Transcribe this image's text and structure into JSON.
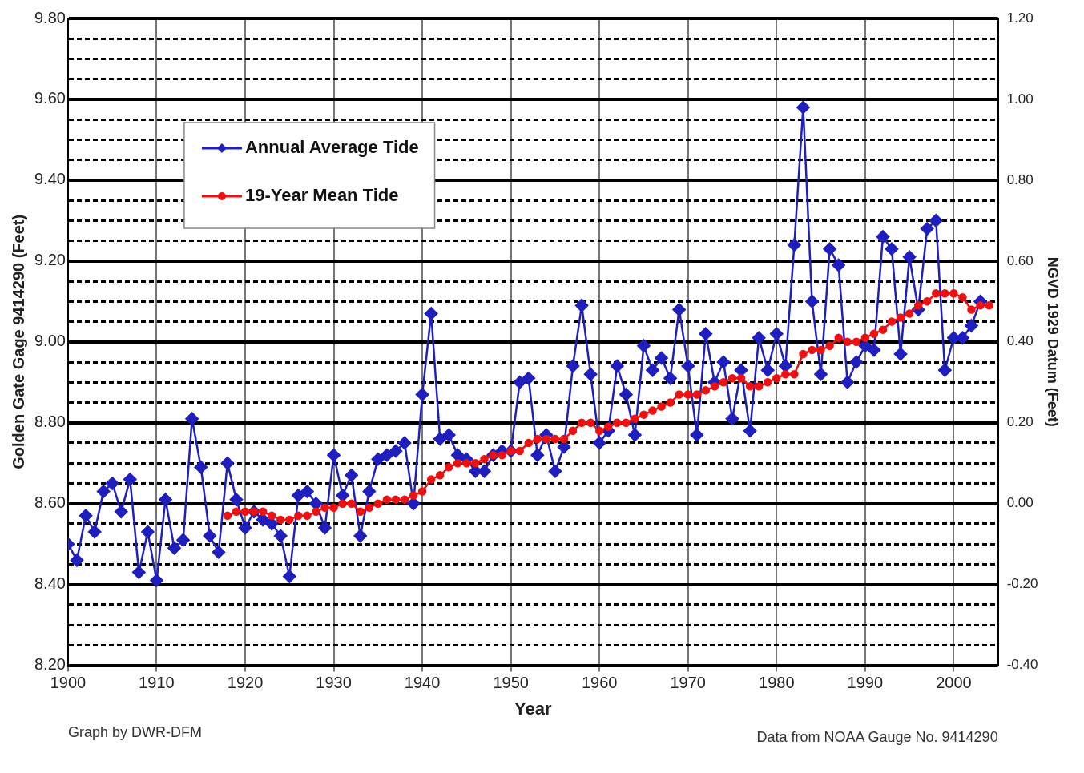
{
  "chart_data": {
    "type": "line",
    "xlabel": "Year",
    "ylabel": "Golden Gate Gage 9414290 (Feet)",
    "y2label": "NGVD 1929 Datum (Feet)",
    "annotations": [
      "Graph by DWR-DFM",
      "Data from NOAA Gauge No. 9414290"
    ],
    "xlim": [
      1900,
      2005
    ],
    "xticks": [
      1900,
      1910,
      1920,
      1930,
      1940,
      1950,
      1960,
      1970,
      1980,
      1990,
      2000
    ],
    "ylim": [
      8.2,
      9.8
    ],
    "yticks": [
      {
        "value": 8.2,
        "label": "8.20"
      },
      {
        "value": 8.25,
        "label": null
      },
      {
        "value": 8.3,
        "label": null
      },
      {
        "value": 8.35,
        "label": null
      },
      {
        "value": 8.4,
        "label": "8.40"
      },
      {
        "value": 8.45,
        "label": null
      },
      {
        "value": 8.5,
        "label": null
      },
      {
        "value": 8.55,
        "label": null
      },
      {
        "value": 8.6,
        "label": "8.60"
      },
      {
        "value": 8.65,
        "label": null
      },
      {
        "value": 8.7,
        "label": null
      },
      {
        "value": 8.75,
        "label": null
      },
      {
        "value": 8.8,
        "label": "8.80"
      },
      {
        "value": 8.85,
        "label": null
      },
      {
        "value": 8.9,
        "label": null
      },
      {
        "value": 8.95,
        "label": null
      },
      {
        "value": 9.0,
        "label": "9.00"
      },
      {
        "value": 9.05,
        "label": null
      },
      {
        "value": 9.1,
        "label": null
      },
      {
        "value": 9.15,
        "label": null
      },
      {
        "value": 9.2,
        "label": "9.20"
      },
      {
        "value": 9.25,
        "label": null
      },
      {
        "value": 9.3,
        "label": null
      },
      {
        "value": 9.35,
        "label": null
      },
      {
        "value": 9.4,
        "label": "9.40"
      },
      {
        "value": 9.45,
        "label": null
      },
      {
        "value": 9.5,
        "label": null
      },
      {
        "value": 9.55,
        "label": null
      },
      {
        "value": 9.6,
        "label": "9.60"
      },
      {
        "value": 9.65,
        "label": null
      },
      {
        "value": 9.7,
        "label": null
      },
      {
        "value": 9.75,
        "label": null
      },
      {
        "value": 9.8,
        "label": "9.80"
      }
    ],
    "y2lim": [
      -0.4,
      1.2
    ],
    "y2ticks": [
      {
        "value": -0.4,
        "label": "-0.40"
      },
      {
        "value": -0.2,
        "label": "-0.20"
      },
      {
        "value": 0,
        "label": "0.00"
      },
      {
        "value": 0.2,
        "label": "0.20"
      },
      {
        "value": 0.4,
        "label": "0.40"
      },
      {
        "value": 0.6,
        "label": "0.60"
      },
      {
        "value": 0.8,
        "label": "0.80"
      },
      {
        "value": 1.0,
        "label": "1.00"
      },
      {
        "value": 1.2,
        "label": "1.20"
      }
    ],
    "grid": true,
    "legend": "top left",
    "line_style": "solid",
    "series": [
      {
        "name": "Annual Average Tide",
        "color": "#1f1fbf",
        "marker": "diamond",
        "x": [
          1900,
          1901,
          1902,
          1903,
          1904,
          1905,
          1906,
          1907,
          1908,
          1909,
          1910,
          1911,
          1912,
          1913,
          1914,
          1915,
          1916,
          1917,
          1918,
          1919,
          1920,
          1921,
          1922,
          1923,
          1924,
          1925,
          1926,
          1927,
          1928,
          1929,
          1930,
          1931,
          1932,
          1933,
          1934,
          1935,
          1936,
          1937,
          1938,
          1939,
          1940,
          1941,
          1942,
          1943,
          1944,
          1945,
          1946,
          1947,
          1948,
          1949,
          1950,
          1951,
          1952,
          1953,
          1954,
          1955,
          1956,
          1957,
          1958,
          1959,
          1960,
          1961,
          1962,
          1963,
          1964,
          1965,
          1966,
          1967,
          1968,
          1969,
          1970,
          1971,
          1972,
          1973,
          1974,
          1975,
          1976,
          1977,
          1978,
          1979,
          1980,
          1981,
          1982,
          1983,
          1984,
          1985,
          1986,
          1987,
          1988,
          1989,
          1990,
          1991,
          1992,
          1993,
          1994,
          1995,
          1996,
          1997,
          1998,
          1999,
          2000,
          2001,
          2002,
          2003
        ],
        "values": [
          8.5,
          8.46,
          8.57,
          8.53,
          8.63,
          8.65,
          8.58,
          8.66,
          8.43,
          8.53,
          8.41,
          8.61,
          8.49,
          8.51,
          8.81,
          8.69,
          8.52,
          8.48,
          8.7,
          8.61,
          8.54,
          8.58,
          8.56,
          8.55,
          8.52,
          8.42,
          8.62,
          8.63,
          8.6,
          8.54,
          8.72,
          8.62,
          8.67,
          8.52,
          8.63,
          8.71,
          8.72,
          8.73,
          8.75,
          8.6,
          8.87,
          9.07,
          8.76,
          8.77,
          8.72,
          8.71,
          8.68,
          8.68,
          8.72,
          8.73,
          8.73,
          8.9,
          8.91,
          8.72,
          8.77,
          8.68,
          8.74,
          8.94,
          9.09,
          8.92,
          8.75,
          8.78,
          8.94,
          8.87,
          8.77,
          8.99,
          8.93,
          8.96,
          8.91,
          9.08,
          8.94,
          8.77,
          9.02,
          8.9,
          8.95,
          8.81,
          8.93,
          8.78,
          9.01,
          8.93,
          9.02,
          8.94,
          9.24,
          9.58,
          9.1,
          8.92,
          9.23,
          9.19,
          8.9,
          8.95,
          8.99,
          8.98,
          9.26,
          9.23,
          8.97,
          9.21,
          9.08,
          9.28,
          9.3,
          8.93,
          9.01,
          9.01,
          9.04,
          9.1
        ]
      },
      {
        "name": "19-Year Mean Tide",
        "color": "#ee1111",
        "marker": "circle",
        "x": [
          1918,
          1919,
          1920,
          1921,
          1922,
          1923,
          1924,
          1925,
          1926,
          1927,
          1928,
          1929,
          1930,
          1931,
          1932,
          1933,
          1934,
          1935,
          1936,
          1937,
          1938,
          1939,
          1940,
          1941,
          1942,
          1943,
          1944,
          1945,
          1946,
          1947,
          1948,
          1949,
          1950,
          1951,
          1952,
          1953,
          1954,
          1955,
          1956,
          1957,
          1958,
          1959,
          1960,
          1961,
          1962,
          1963,
          1964,
          1965,
          1966,
          1967,
          1968,
          1969,
          1970,
          1971,
          1972,
          1973,
          1974,
          1975,
          1976,
          1977,
          1978,
          1979,
          1980,
          1981,
          1982,
          1983,
          1984,
          1985,
          1986,
          1987,
          1988,
          1989,
          1990,
          1991,
          1992,
          1993,
          1994,
          1995,
          1996,
          1997,
          1998,
          1999,
          2000,
          2001,
          2002,
          2003,
          2004
        ],
        "values": [
          8.57,
          8.58,
          8.58,
          8.58,
          8.58,
          8.57,
          8.56,
          8.56,
          8.57,
          8.57,
          8.58,
          8.59,
          8.59,
          8.6,
          8.6,
          8.58,
          8.59,
          8.6,
          8.61,
          8.61,
          8.61,
          8.62,
          8.63,
          8.66,
          8.67,
          8.69,
          8.7,
          8.7,
          8.7,
          8.71,
          8.72,
          8.72,
          8.73,
          8.73,
          8.75,
          8.76,
          8.76,
          8.76,
          8.76,
          8.78,
          8.8,
          8.8,
          8.78,
          8.79,
          8.8,
          8.8,
          8.81,
          8.82,
          8.83,
          8.84,
          8.85,
          8.87,
          8.87,
          8.87,
          8.88,
          8.89,
          8.9,
          8.91,
          8.91,
          8.89,
          8.89,
          8.9,
          8.91,
          8.92,
          8.92,
          8.97,
          8.98,
          8.98,
          8.99,
          9.01,
          9.0,
          9.0,
          9.01,
          9.02,
          9.03,
          9.05,
          9.06,
          9.07,
          9.09,
          9.1,
          9.12,
          9.12,
          9.12,
          9.11,
          9.08,
          9.09,
          9.09
        ]
      }
    ]
  }
}
